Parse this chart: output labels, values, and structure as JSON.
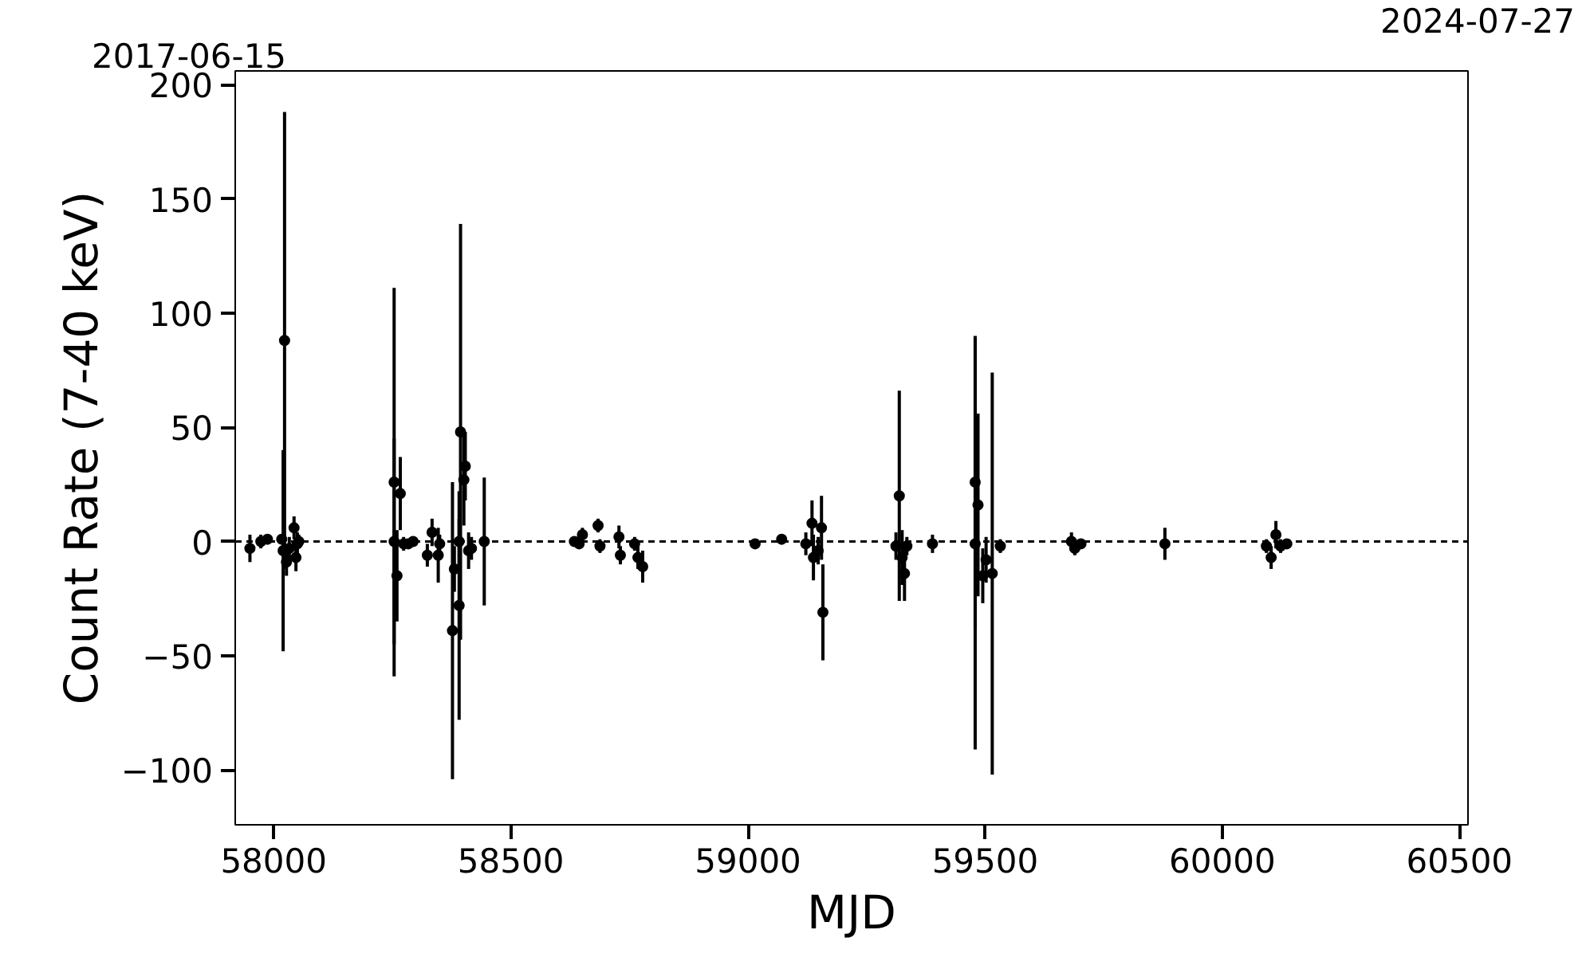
{
  "chart_data": {
    "type": "scatter",
    "xlabel": "MJD",
    "ylabel": "Count Rate (7-40 keV)",
    "annotations": [
      "2017-06-15",
      "2024-07-27"
    ],
    "x": [
      57950,
      57973,
      57987,
      58017,
      58020,
      58023,
      58027,
      58033,
      58043,
      58047,
      58050,
      58053,
      58254,
      58254,
      58260,
      58267,
      58274,
      58284,
      58294,
      58324,
      58334,
      58347,
      58350,
      58377,
      58381,
      58391,
      58394,
      58391,
      58401,
      58404,
      58411,
      58417,
      58444,
      58634,
      58644,
      58651,
      58684,
      58688,
      58728,
      58731,
      58761,
      58768,
      58778,
      59015,
      59071,
      59122,
      59135,
      59138,
      59148,
      59155,
      59158,
      59312,
      59319,
      59325,
      59330,
      59335,
      59389,
      59479,
      59479,
      59485,
      59495,
      59502,
      59515,
      59532,
      59682,
      59689,
      59702,
      59879,
      60093,
      60103,
      60113,
      60123,
      60136
    ],
    "series": [
      {
        "color": "#000000",
        "values": [
          -3,
          0,
          1,
          1,
          -4,
          88,
          -9,
          -3,
          6,
          -7,
          -1,
          0,
          26,
          0,
          -15,
          21,
          -1,
          -1,
          0,
          -6,
          4,
          -6,
          -1,
          -39,
          -12,
          0,
          48,
          -28,
          27,
          33,
          -4,
          -3,
          0,
          0,
          -1,
          3,
          7,
          -2,
          2,
          -6,
          -1,
          -7,
          -11,
          -1,
          1,
          -1,
          8,
          -7,
          -4,
          6,
          -31,
          -2,
          20,
          -7,
          -14,
          -2,
          -1,
          26,
          -1,
          16,
          -15,
          -8,
          -14,
          -2,
          0,
          -3,
          -1,
          -1,
          -2,
          -7,
          3,
          -2,
          -1
        ],
        "errors": [
          6,
          3,
          2,
          2,
          44,
          100,
          6,
          5,
          5,
          6,
          5,
          3,
          85,
          45,
          20,
          16,
          3,
          2,
          2,
          5,
          6,
          12,
          4,
          65,
          10,
          10,
          91,
          50,
          20,
          15,
          8,
          5,
          28,
          2,
          2,
          3,
          3,
          3,
          5,
          4,
          3,
          5,
          7,
          2,
          2,
          5,
          10,
          10,
          6,
          14,
          21,
          6,
          46,
          12,
          12,
          4,
          4,
          64,
          90,
          40,
          12,
          10,
          88,
          3,
          4,
          3,
          2,
          7,
          3,
          5,
          6,
          3,
          2
        ]
      }
    ],
    "marker": "circle",
    "grid": false,
    "xlim": [
      57919,
      60518
    ],
    "xticks": [
      58000,
      58500,
      59000,
      59500,
      60000,
      60500
    ],
    "ylim": [
      -124,
      206
    ],
    "yticks": [
      {
        "value": -100,
        "label": "−100"
      },
      {
        "value": -50,
        "label": "−50"
      },
      0,
      50,
      100,
      150,
      200
    ],
    "ref_lines": [
      {
        "axis": "y",
        "value": 0,
        "label": null,
        "color": "#000000",
        "line_style": "dashed"
      }
    ]
  }
}
